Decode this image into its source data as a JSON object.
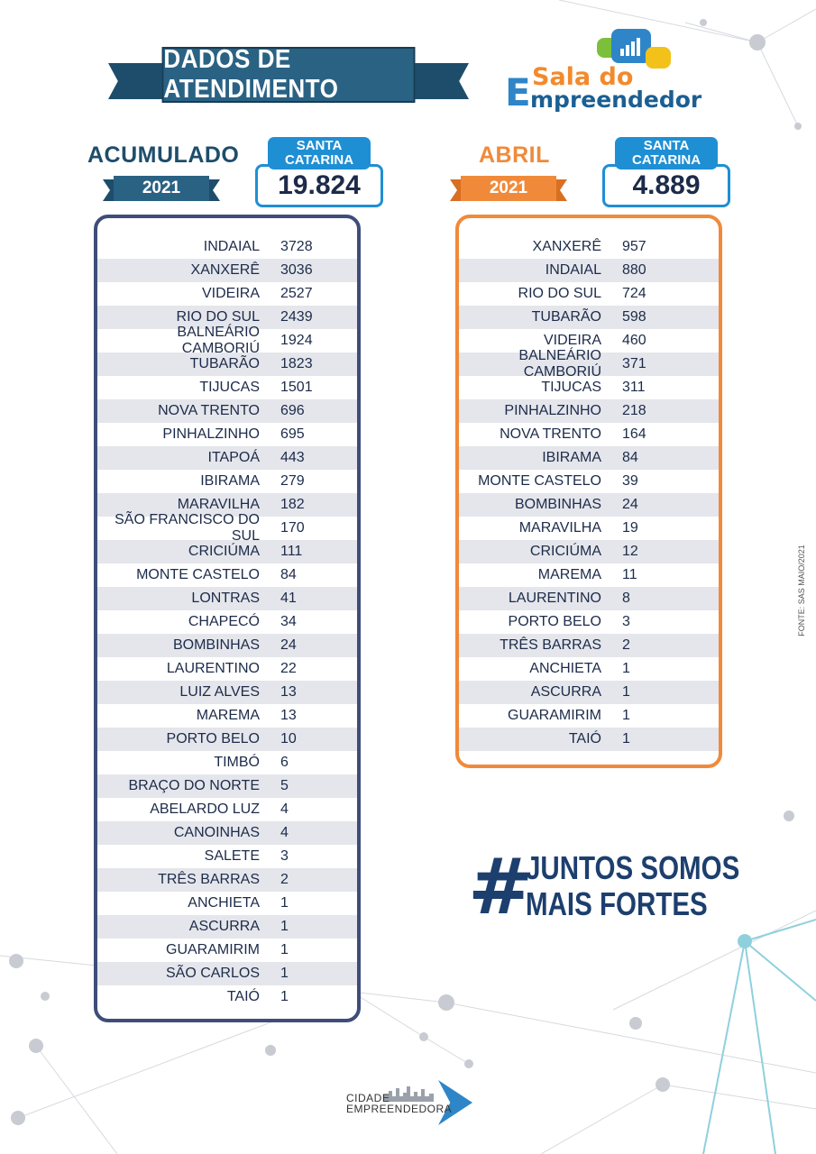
{
  "header": {
    "title": "DADOS DE ATENDIMENTO",
    "logo": {
      "line1": "Sala do",
      "big_letter": "E",
      "line2": "mpreendedor"
    }
  },
  "acumulado": {
    "title": "ACUMULADO",
    "year": "2021",
    "total_label_1": "SANTA",
    "total_label_2": "CATARINA",
    "total": "19.824",
    "rows": [
      {
        "city": "INDAIAL",
        "value": "3728"
      },
      {
        "city": "XANXERÊ",
        "value": "3036"
      },
      {
        "city": "VIDEIRA",
        "value": "2527"
      },
      {
        "city": "RIO DO SUL",
        "value": "2439"
      },
      {
        "city": "BALNEÁRIO CAMBORIÚ",
        "value": "1924"
      },
      {
        "city": "TUBARÃO",
        "value": "1823"
      },
      {
        "city": "TIJUCAS",
        "value": "1501"
      },
      {
        "city": "NOVA TRENTO",
        "value": "696"
      },
      {
        "city": "PINHALZINHO",
        "value": "695"
      },
      {
        "city": "ITAPOÁ",
        "value": "443"
      },
      {
        "city": "IBIRAMA",
        "value": "279"
      },
      {
        "city": "MARAVILHA",
        "value": "182"
      },
      {
        "city": "SÃO FRANCISCO DO SUL",
        "value": "170"
      },
      {
        "city": "CRICIÚMA",
        "value": "111"
      },
      {
        "city": "MONTE CASTELO",
        "value": "84"
      },
      {
        "city": "LONTRAS",
        "value": "41"
      },
      {
        "city": "CHAPECÓ",
        "value": "34"
      },
      {
        "city": "BOMBINHAS",
        "value": "24"
      },
      {
        "city": "LAURENTINO",
        "value": "22"
      },
      {
        "city": "LUIZ ALVES",
        "value": "13"
      },
      {
        "city": "MAREMA",
        "value": "13"
      },
      {
        "city": "PORTO BELO",
        "value": "10"
      },
      {
        "city": "TIMBÓ",
        "value": "6"
      },
      {
        "city": "BRAÇO DO NORTE",
        "value": "5"
      },
      {
        "city": "ABELARDO LUZ",
        "value": "4"
      },
      {
        "city": "CANOINHAS",
        "value": "4"
      },
      {
        "city": "SALETE",
        "value": "3"
      },
      {
        "city": "TRÊS BARRAS",
        "value": "2"
      },
      {
        "city": "ANCHIETA",
        "value": "1"
      },
      {
        "city": "ASCURRA",
        "value": "1"
      },
      {
        "city": "GUARAMIRIM",
        "value": "1"
      },
      {
        "city": "SÃO CARLOS",
        "value": "1"
      },
      {
        "city": "TAIÓ",
        "value": "1"
      }
    ]
  },
  "abril": {
    "title": "ABRIL",
    "year": "2021",
    "total_label_1": "SANTA",
    "total_label_2": "CATARINA",
    "total": "4.889",
    "rows": [
      {
        "city": "XANXERÊ",
        "value": "957"
      },
      {
        "city": "INDAIAL",
        "value": "880"
      },
      {
        "city": "RIO DO SUL",
        "value": "724"
      },
      {
        "city": "TUBARÃO",
        "value": "598"
      },
      {
        "city": "VIDEIRA",
        "value": "460"
      },
      {
        "city": "BALNEÁRIO CAMBORIÚ",
        "value": "371"
      },
      {
        "city": "TIJUCAS",
        "value": "311"
      },
      {
        "city": "PINHALZINHO",
        "value": "218"
      },
      {
        "city": "NOVA TRENTO",
        "value": "164"
      },
      {
        "city": "IBIRAMA",
        "value": "84"
      },
      {
        "city": "MONTE CASTELO",
        "value": "39"
      },
      {
        "city": "BOMBINHAS",
        "value": "24"
      },
      {
        "city": "MARAVILHA",
        "value": "19"
      },
      {
        "city": "CRICIÚMA",
        "value": "12"
      },
      {
        "city": "MAREMA",
        "value": "11"
      },
      {
        "city": "LAURENTINO",
        "value": "8"
      },
      {
        "city": "PORTO BELO",
        "value": "3"
      },
      {
        "city": "TRÊS BARRAS",
        "value": "2"
      },
      {
        "city": "ANCHIETA",
        "value": "1"
      },
      {
        "city": "ASCURRA",
        "value": "1"
      },
      {
        "city": "GUARAMIRIM",
        "value": "1"
      },
      {
        "city": "TAIÓ",
        "value": "1"
      }
    ]
  },
  "slogan": {
    "hash": "#",
    "line1": "JUNTOS SOMOS",
    "line2": "MAIS FORTES"
  },
  "source": "FONTE: SAS MAIO/2021",
  "footer": {
    "line1": "CIDADE",
    "line2": "EMPREENDEDORA"
  },
  "colors": {
    "navy": "#3e4d79",
    "orange": "#f08a3a",
    "blue_accent": "#1f8fd4",
    "ribbon": "#2a6284",
    "row_stripe": "#e4e6eb"
  }
}
